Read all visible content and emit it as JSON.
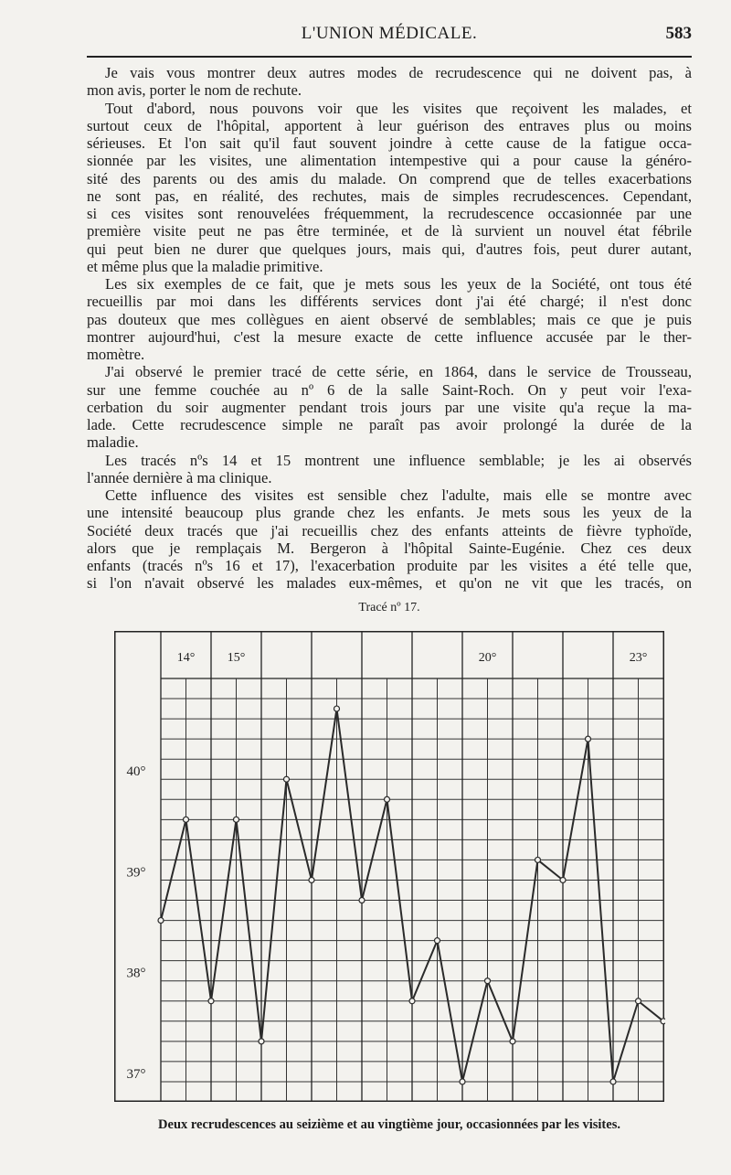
{
  "header": {
    "journal_title": "L'UNION MÉDICALE.",
    "page_number": "583"
  },
  "body": {
    "lines": [
      {
        "text": "Je vais vous montrer deux autres modes de recrudescence qui ne doivent pas, à",
        "indent": true,
        "last": false
      },
      {
        "text": "mon avis, porter le nom de rechute.",
        "indent": false,
        "last": true
      },
      {
        "text": "Tout d'abord, nous pouvons voir que les visites que reçoivent les malades, et",
        "indent": true,
        "last": false
      },
      {
        "text": "surtout ceux de l'hôpital, apportent à leur guérison des entraves plus ou moins",
        "indent": false,
        "last": false
      },
      {
        "text": "sérieuses. Et l'on sait qu'il faut souvent joindre à cette cause de la fatigue occa-",
        "indent": false,
        "last": false
      },
      {
        "text": "sionnée par les visites, une alimentation intempestive qui a pour cause la généro-",
        "indent": false,
        "last": false
      },
      {
        "text": "sité des parents ou des amis du malade. On comprend que de telles exacerbations",
        "indent": false,
        "last": false
      },
      {
        "text": "ne sont pas, en réalité, des rechutes, mais de simples recrudescences. Cependant,",
        "indent": false,
        "last": false
      },
      {
        "text": "si ces visites sont renouvelées fréquemment, la recrudescence occasionnée par une",
        "indent": false,
        "last": false
      },
      {
        "text": "première visite peut ne pas être terminée, et de là survient un nouvel état fébrile",
        "indent": false,
        "last": false
      },
      {
        "text": "qui peut bien ne durer que quelques jours, mais qui, d'autres fois, peut durer autant,",
        "indent": false,
        "last": false
      },
      {
        "text": "et même plus que la maladie primitive.",
        "indent": false,
        "last": true
      },
      {
        "text": "Les six exemples de ce fait, que je mets sous les yeux de la Société, ont tous été",
        "indent": true,
        "last": false
      },
      {
        "text": "recueillis par moi dans les différents services dont j'ai été chargé; il n'est donc",
        "indent": false,
        "last": false
      },
      {
        "text": "pas douteux que mes collègues en aient observé de semblables; mais ce que je puis",
        "indent": false,
        "last": false
      },
      {
        "text": "montrer aujourd'hui, c'est la mesure exacte de cette influence accusée par le ther-",
        "indent": false,
        "last": false
      },
      {
        "text": "momètre.",
        "indent": false,
        "last": true
      },
      {
        "text": "J'ai observé le premier tracé de cette série, en 1864, dans le service de Trousseau,",
        "indent": true,
        "last": false
      },
      {
        "text": "sur une femme couchée au nº 6 de la salle Saint-Roch. On y peut voir l'exa-",
        "indent": false,
        "last": false
      },
      {
        "text": "cerbation du soir augmenter pendant trois jours par une visite qu'a reçue la ma-",
        "indent": false,
        "last": false
      },
      {
        "text": "lade. Cette recrudescence simple ne paraît pas avoir prolongé la durée de la",
        "indent": false,
        "last": false
      },
      {
        "text": "maladie.",
        "indent": false,
        "last": true
      },
      {
        "text": "Les tracés nºs 14 et 15 montrent une influence semblable; je les ai observés",
        "indent": true,
        "last": false
      },
      {
        "text": "l'année dernière à ma clinique.",
        "indent": false,
        "last": true
      },
      {
        "text": "Cette influence des visites est sensible chez l'adulte, mais elle se montre avec",
        "indent": true,
        "last": false
      },
      {
        "text": "une intensité beaucoup plus grande chez les enfants. Je mets sous les yeux de la",
        "indent": false,
        "last": false
      },
      {
        "text": "Société deux tracés que j'ai recueillis chez des enfants atteints de fièvre typhoïde,",
        "indent": false,
        "last": false
      },
      {
        "text": "alors que je remplaçais M. Bergeron à l'hôpital Sainte-Eugénie. Chez ces deux",
        "indent": false,
        "last": false
      },
      {
        "text": "enfants (tracés nºs 16 et 17), l'exacerbation produite par les visites a été telle que,",
        "indent": false,
        "last": false
      },
      {
        "text": "si l'on n'avait observé les malades eux-mêmes, et qu'on ne vit que les tracés, on",
        "indent": false,
        "last": false
      }
    ]
  },
  "figure": {
    "title": "Tracé nº 17.",
    "caption": "Deux recrudescences au seizième et au vingtième jour, occasionnées par les visites."
  },
  "chart_data": {
    "type": "line",
    "title": "Tracé nº 17.",
    "day_labels": [
      "14°",
      "15°",
      "",
      "",
      "",
      "",
      "20°",
      "",
      "",
      "23°"
    ],
    "y_tick_labels": [
      {
        "value": 40,
        "label": "40°"
      },
      {
        "value": 39,
        "label": "39°"
      },
      {
        "value": 38,
        "label": "38°"
      },
      {
        "value": 37,
        "label": "37°"
      }
    ],
    "x": [
      14,
      14.5,
      15,
      15.5,
      16,
      16.5,
      17,
      17.5,
      18,
      18.5,
      19,
      19.5,
      20,
      20.5,
      21,
      21.5,
      22,
      22.5,
      23,
      23.5,
      24
    ],
    "values": [
      38.6,
      39.6,
      37.8,
      39.6,
      37.4,
      40.0,
      39.0,
      40.7,
      38.8,
      39.8,
      37.8,
      38.4,
      37.0,
      38.0,
      37.4,
      39.2,
      39.0,
      40.4,
      37.0,
      37.8,
      37.6
    ],
    "ylim": [
      36.8,
      41.0
    ],
    "y_grid_step": 0.2,
    "grid": true,
    "line_color": "#2a2a2a"
  }
}
